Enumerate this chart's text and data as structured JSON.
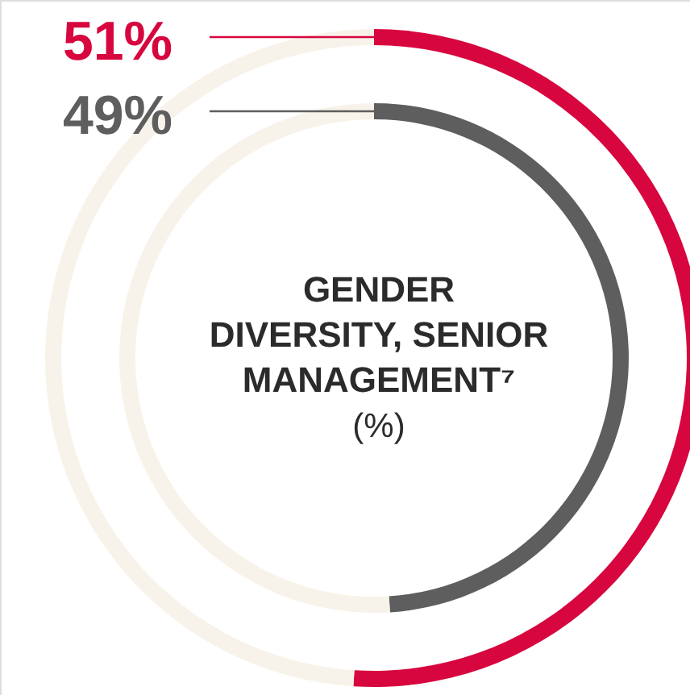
{
  "chart_data": {
    "type": "donut",
    "title": "GENDER\nDIVERSITY, SENIOR\nMANAGEMENT⁷",
    "subtitle": "(%)",
    "categories": [
      null,
      null
    ],
    "series": [
      {
        "values": [
          49,
          51
        ],
        "colors": [
          "#5e5e5e",
          "#f8f3ea"
        ],
        "value_labels": [
          "49%",
          null
        ]
      },
      {
        "values": [
          51,
          49
        ],
        "colors": [
          "#d7063f",
          "#f8f3ea"
        ],
        "value_labels": [
          "51%",
          null
        ]
      }
    ]
  }
}
